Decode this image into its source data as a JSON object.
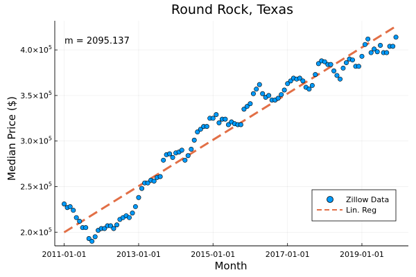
{
  "chart_data": {
    "type": "scatter",
    "title": "Round Rock, Texas",
    "xlabel": "Month",
    "ylabel": "Median Price ($)",
    "annotation": "m = 2095.137",
    "x_range": [
      "2010-10-01",
      "2020-04-01"
    ],
    "ylim": [
      185000,
      432000
    ],
    "x_ticks": [
      "2011-01-01",
      "2013-01-01",
      "2015-01-01",
      "2017-01-01",
      "2019-01-01"
    ],
    "y_ticks": [
      {
        "value": 200000,
        "mantissa": "2.0",
        "exponent": "5"
      },
      {
        "value": 250000,
        "mantissa": "2.5",
        "exponent": "5"
      },
      {
        "value": 300000,
        "mantissa": "3.0",
        "exponent": "5"
      },
      {
        "value": 350000,
        "mantissa": "3.5",
        "exponent": "5"
      },
      {
        "value": 400000,
        "mantissa": "4.0",
        "exponent": "5"
      }
    ],
    "grid": true,
    "legend_position": "bottom-right",
    "colors": {
      "scatter": "#009AFA",
      "regression": "#E26F46"
    },
    "series": [
      {
        "name": "Zillow Data",
        "type": "scatter",
        "x": [
          "2011-01-01",
          "2011-02-01",
          "2011-03-01",
          "2011-04-01",
          "2011-05-01",
          "2011-06-01",
          "2011-07-01",
          "2011-08-01",
          "2011-09-01",
          "2011-10-01",
          "2011-11-01",
          "2011-12-01",
          "2012-01-01",
          "2012-02-01",
          "2012-03-01",
          "2012-04-01",
          "2012-05-01",
          "2012-06-01",
          "2012-07-01",
          "2012-08-01",
          "2012-09-01",
          "2012-10-01",
          "2012-11-01",
          "2012-12-01",
          "2013-01-01",
          "2013-02-01",
          "2013-03-01",
          "2013-04-01",
          "2013-05-01",
          "2013-06-01",
          "2013-07-01",
          "2013-08-01",
          "2013-09-01",
          "2013-10-01",
          "2013-11-01",
          "2013-12-01",
          "2014-01-01",
          "2014-02-01",
          "2014-03-01",
          "2014-04-01",
          "2014-05-01",
          "2014-06-01",
          "2014-07-01",
          "2014-08-01",
          "2014-09-01",
          "2014-10-01",
          "2014-11-01",
          "2014-12-01",
          "2015-01-01",
          "2015-02-01",
          "2015-03-01",
          "2015-04-01",
          "2015-05-01",
          "2015-06-01",
          "2015-07-01",
          "2015-08-01",
          "2015-09-01",
          "2015-10-01",
          "2015-11-01",
          "2015-12-01",
          "2016-01-01",
          "2016-02-01",
          "2016-03-01",
          "2016-04-01",
          "2016-05-01",
          "2016-06-01",
          "2016-07-01",
          "2016-08-01",
          "2016-09-01",
          "2016-10-01",
          "2016-11-01",
          "2016-12-01",
          "2017-01-01",
          "2017-02-01",
          "2017-03-01",
          "2017-04-01",
          "2017-05-01",
          "2017-06-01",
          "2017-07-01",
          "2017-08-01",
          "2017-09-01",
          "2017-10-01",
          "2017-11-01",
          "2017-12-01",
          "2018-01-01",
          "2018-02-01",
          "2018-03-01",
          "2018-04-01",
          "2018-05-01",
          "2018-06-01",
          "2018-07-01",
          "2018-08-01",
          "2018-09-01",
          "2018-10-01",
          "2018-11-01",
          "2018-12-01",
          "2019-01-01",
          "2019-02-01",
          "2019-03-01",
          "2019-04-01",
          "2019-05-01",
          "2019-06-01",
          "2019-07-01",
          "2019-08-01",
          "2019-09-01",
          "2019-10-01",
          "2019-11-01",
          "2019-12-01"
        ],
        "y": [
          231000,
          227000,
          228000,
          224000,
          216000,
          212000,
          205000,
          205000,
          193000,
          190000,
          195000,
          202000,
          204000,
          204000,
          207000,
          207000,
          204000,
          208000,
          214000,
          216000,
          218000,
          216000,
          221000,
          228000,
          238000,
          248000,
          254000,
          254000,
          257000,
          256000,
          260000,
          261000,
          279000,
          285000,
          286000,
          282000,
          287000,
          288000,
          290000,
          279000,
          284000,
          291000,
          301000,
          310000,
          313000,
          316000,
          316000,
          325000,
          325000,
          329000,
          320000,
          324000,
          324000,
          318000,
          321000,
          319000,
          318000,
          318000,
          335000,
          338000,
          341000,
          352000,
          357000,
          362000,
          352000,
          348000,
          350000,
          345000,
          345000,
          347000,
          351000,
          356000,
          363000,
          366000,
          369000,
          368000,
          369000,
          366000,
          359000,
          357000,
          361000,
          373000,
          385000,
          388000,
          387000,
          384000,
          384000,
          377000,
          372000,
          368000,
          380000,
          386000,
          390000,
          389000,
          382000,
          382000,
          393000,
          406000,
          412000,
          397000,
          401000,
          398000,
          405000,
          397000,
          397000,
          404000,
          404000,
          414000
        ]
      },
      {
        "name": "Lin. Reg",
        "type": "line",
        "slope_per_month": 2095.137,
        "x": [
          "2011-01-01",
          "2019-12-01"
        ],
        "y": [
          199800,
          426000
        ]
      }
    ]
  }
}
